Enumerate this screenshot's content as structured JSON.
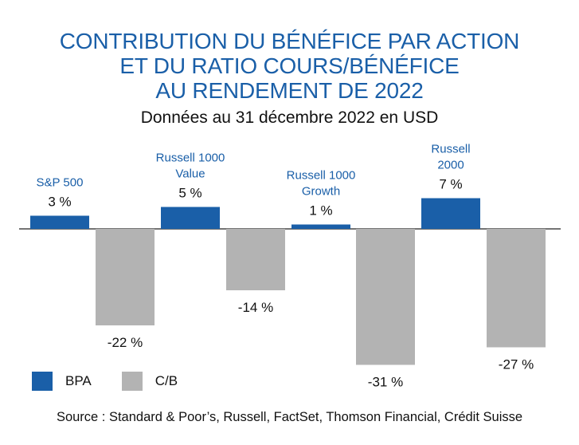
{
  "title_lines": [
    "CONTRIBUTION DU BÉNÉFICE PAR ACTION",
    "ET DU RATIO COURS/BÉNÉFICE",
    "AU RENDEMENT DE 2022"
  ],
  "subtitle": "Données au 31 décembre 2022 en USD",
  "colors": {
    "bpa": "#1a5fa8",
    "cb": "#b3b3b3",
    "title": "#1a5fa8",
    "category": "#1a5fa8"
  },
  "legend": {
    "bpa": "BPA",
    "cb": "C/B"
  },
  "source": "Source : Standard & Poor’s, Russell, FactSet, Thomson Financial, Crédit Suisse",
  "chart_data": {
    "type": "bar",
    "categories": [
      [
        "S&P 500"
      ],
      [
        "Russell 1000",
        "Value"
      ],
      [
        "Russell 1000",
        "Growth"
      ],
      [
        "Russell",
        "2000"
      ]
    ],
    "series": [
      {
        "name": "BPA",
        "values": [
          3,
          5,
          1,
          7
        ],
        "labels": [
          "3 %",
          "5 %",
          "1 %",
          "7 %"
        ]
      },
      {
        "name": "C/B",
        "values": [
          -22,
          -14,
          -31,
          -27
        ],
        "labels": [
          "-22 %",
          "-14 %",
          "-31 %",
          "-27 %"
        ]
      }
    ],
    "unit": "%",
    "ylim": [
      -31,
      7
    ],
    "grid": false,
    "legend_position": "bottom-left"
  }
}
